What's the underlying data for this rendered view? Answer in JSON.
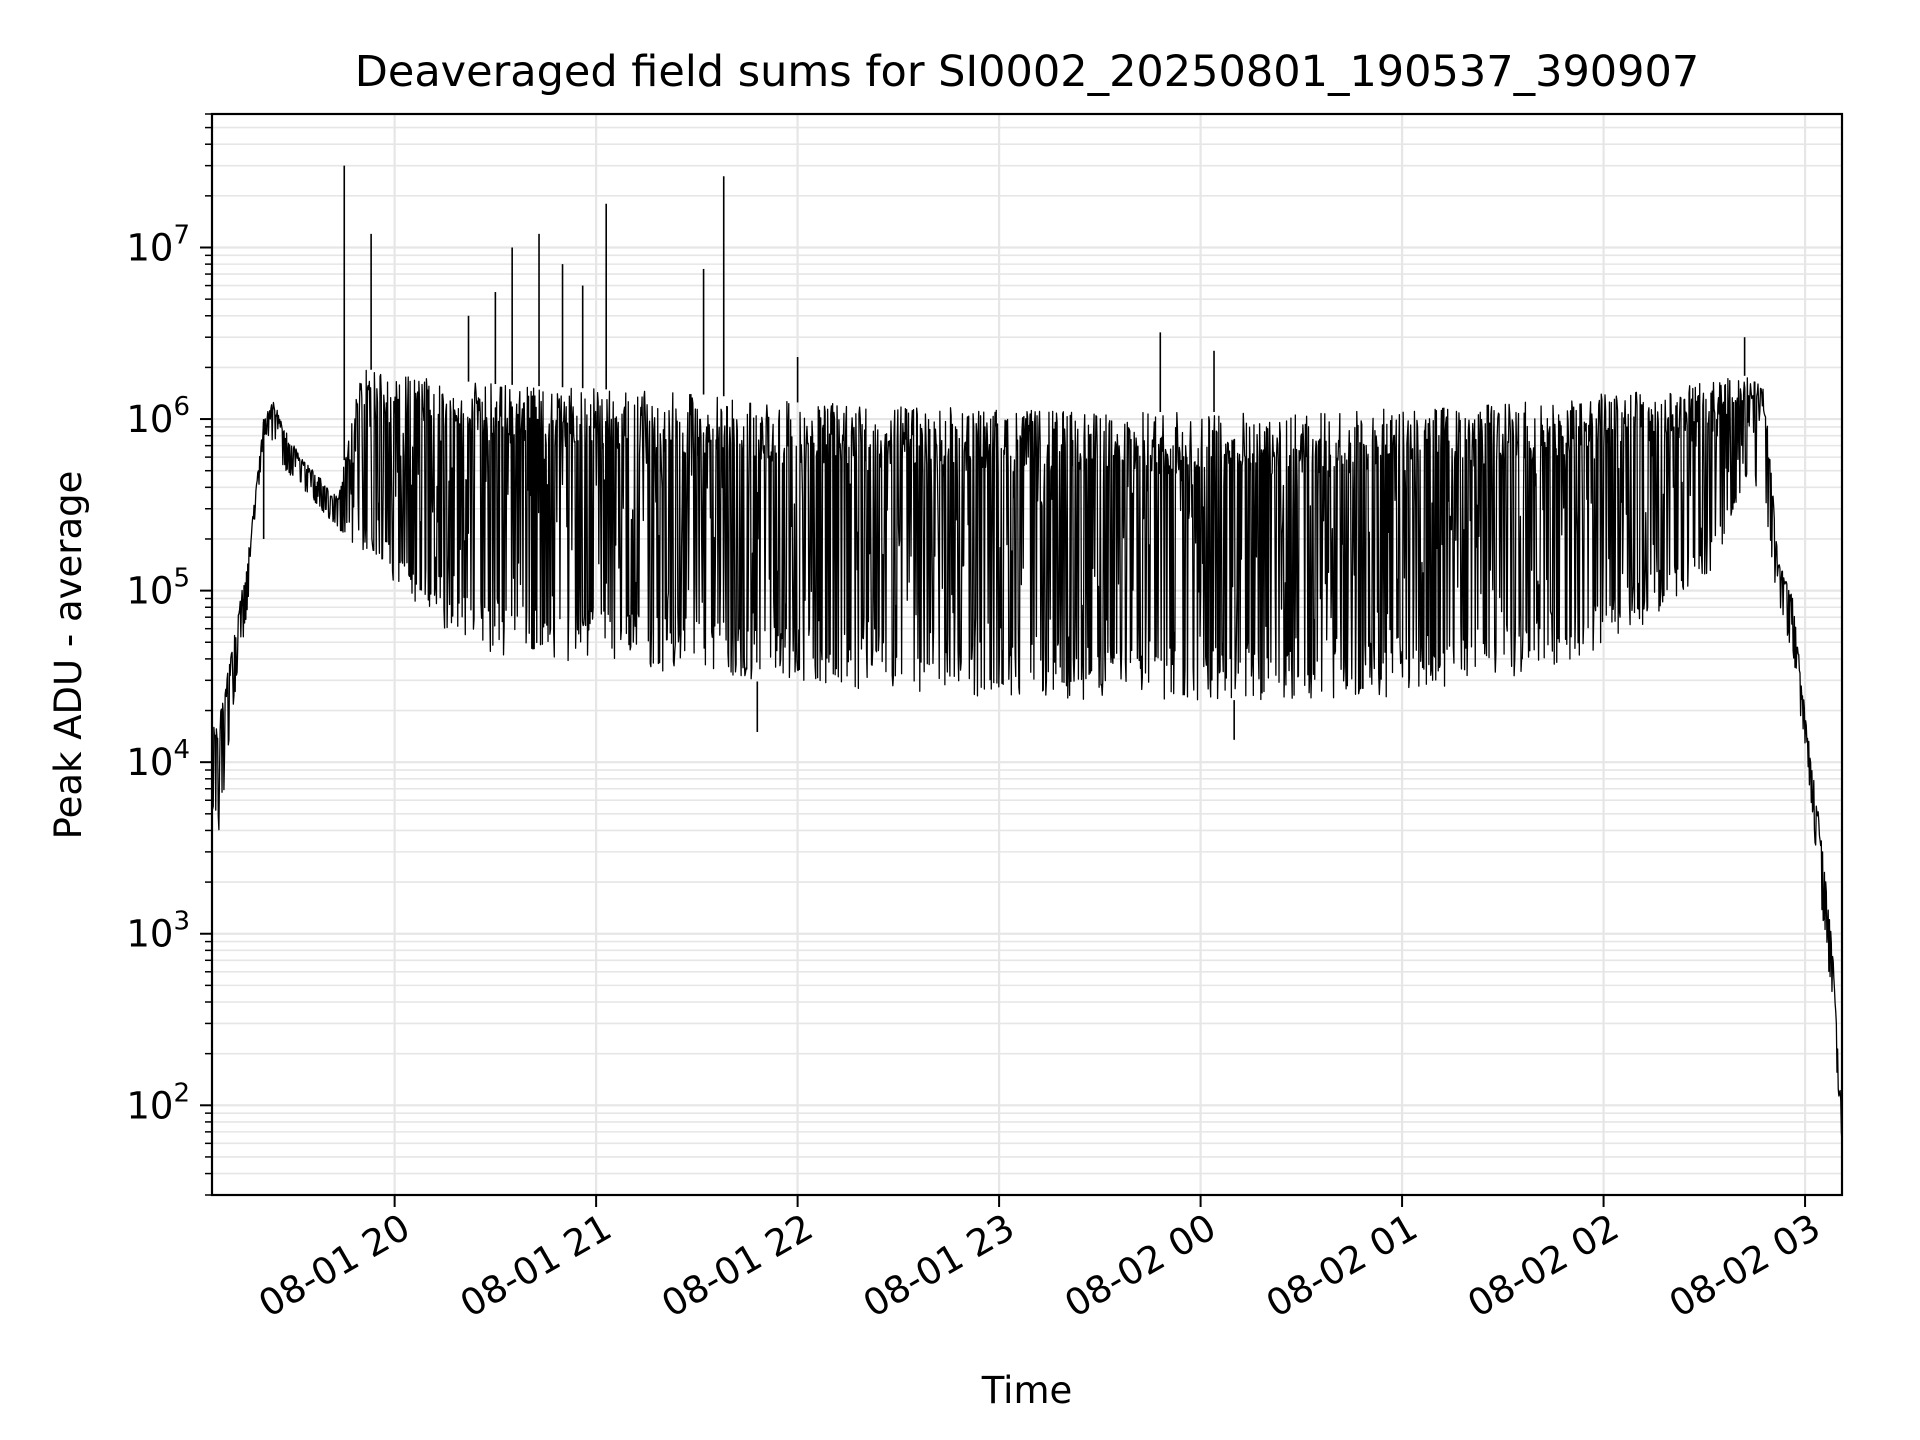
{
  "chart_data": {
    "type": "line",
    "title": "Deaveraged field sums for SI0002_20250801_190537_390907",
    "xlabel": "Time",
    "ylabel": "Peak ADU - average",
    "yscale": "log",
    "ylim": [
      30,
      60000000
    ],
    "xlim": [
      "2025-08-01 19:05:37",
      "2025-08-02 03:11:00"
    ],
    "grid": true,
    "line_color": "#000000",
    "grid_color": "#e6e6e6",
    "x_ticks": [
      {
        "value": "2025-08-01 20:00",
        "label": "08-01 20"
      },
      {
        "value": "2025-08-01 21:00",
        "label": "08-01 21"
      },
      {
        "value": "2025-08-01 22:00",
        "label": "08-01 22"
      },
      {
        "value": "2025-08-01 23:00",
        "label": "08-01 23"
      },
      {
        "value": "2025-08-02 00:00",
        "label": "08-02 00"
      },
      {
        "value": "2025-08-02 01:00",
        "label": "08-02 01"
      },
      {
        "value": "2025-08-02 02:00",
        "label": "08-02 02"
      },
      {
        "value": "2025-08-02 03:00",
        "label": "08-02 03"
      }
    ],
    "y_ticks": [
      {
        "value": 100,
        "base": "10",
        "exp": "2"
      },
      {
        "value": 1000,
        "base": "10",
        "exp": "3"
      },
      {
        "value": 10000,
        "base": "10",
        "exp": "4"
      },
      {
        "value": 100000,
        "base": "10",
        "exp": "5"
      },
      {
        "value": 1000000,
        "base": "10",
        "exp": "6"
      },
      {
        "value": 10000000,
        "base": "10",
        "exp": "7"
      }
    ],
    "series": [
      {
        "envelope": {
          "x": [
            "2025-08-01 19:05:37",
            "2025-08-01 19:08",
            "2025-08-01 19:12",
            "2025-08-01 19:17",
            "2025-08-01 19:21",
            "2025-08-01 19:24",
            "2025-08-01 19:27",
            "2025-08-01 19:32",
            "2025-08-01 19:38",
            "2025-08-01 19:43",
            "2025-08-01 19:50",
            "2025-08-01 20:00",
            "2025-08-01 20:15",
            "2025-08-01 20:30",
            "2025-08-01 21:00",
            "2025-08-01 21:30",
            "2025-08-01 22:00",
            "2025-08-01 22:30",
            "2025-08-01 23:00",
            "2025-08-01 23:30",
            "2025-08-02 00:00",
            "2025-08-02 00:30",
            "2025-08-02 01:00",
            "2025-08-02 01:30",
            "2025-08-02 02:00",
            "2025-08-02 02:20",
            "2025-08-02 02:35",
            "2025-08-02 02:43",
            "2025-08-02 02:48",
            "2025-08-02 02:52",
            "2025-08-02 02:56",
            "2025-08-02 03:00",
            "2025-08-02 03:04",
            "2025-08-02 03:08",
            "2025-08-02 03:11"
          ],
          "high": [
            15000,
            20000,
            50000,
            200000,
            1000000,
            1300000,
            900000,
            600000,
            450000,
            350000,
            2000000,
            1800000,
            1700000,
            1600000,
            1500000,
            1400000,
            1250000,
            1200000,
            1150000,
            1100000,
            1100000,
            1100000,
            1150000,
            1250000,
            1400000,
            1500000,
            1700000,
            1800000,
            1500000,
            150000,
            100000,
            20000,
            5000,
            1000,
            80
          ],
          "low": [
            5000,
            3700,
            20000,
            100000,
            800000,
            700000,
            500000,
            400000,
            300000,
            230000,
            170000,
            100000,
            60000,
            42000,
            38000,
            32000,
            28000,
            25000,
            24000,
            23000,
            23000,
            23000,
            24000,
            30000,
            45000,
            80000,
            150000,
            500000,
            300000,
            80000,
            45000,
            12000,
            2000,
            400,
            60
          ]
        },
        "spikes": [
          {
            "x": "2025-08-01 19:21",
            "y": 200000
          },
          {
            "x": "2025-08-01 19:45",
            "y": 30000000
          },
          {
            "x": "2025-08-01 19:53",
            "y": 12000000
          },
          {
            "x": "2025-08-01 20:22",
            "y": 4000000
          },
          {
            "x": "2025-08-01 20:30",
            "y": 5500000
          },
          {
            "x": "2025-08-01 20:35",
            "y": 10000000
          },
          {
            "x": "2025-08-01 20:43",
            "y": 12000000
          },
          {
            "x": "2025-08-01 20:50",
            "y": 8000000
          },
          {
            "x": "2025-08-01 20:56",
            "y": 6000000
          },
          {
            "x": "2025-08-01 21:03",
            "y": 18000000
          },
          {
            "x": "2025-08-01 21:32",
            "y": 7500000
          },
          {
            "x": "2025-08-01 21:38",
            "y": 26000000
          },
          {
            "x": "2025-08-01 22:00",
            "y": 2300000
          },
          {
            "x": "2025-08-01 23:48",
            "y": 3200000
          },
          {
            "x": "2025-08-02 00:04",
            "y": 2500000
          },
          {
            "x": "2025-08-02 02:42",
            "y": 3000000
          }
        ],
        "dips": [
          {
            "x": "2025-08-01 21:48",
            "y": 15000
          },
          {
            "x": "2025-08-02 00:10",
            "y": 13500
          }
        ]
      }
    ]
  }
}
